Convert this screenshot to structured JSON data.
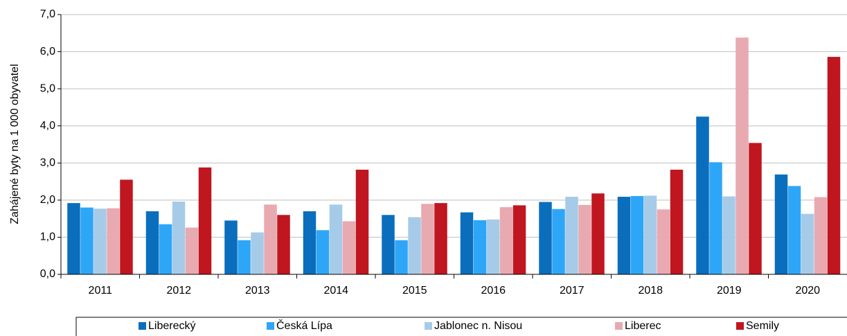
{
  "chart_data": {
    "type": "bar",
    "y_label": "Zahájené byty na 1 000 obyvatel",
    "categories": [
      "2011",
      "2012",
      "2013",
      "2014",
      "2015",
      "2016",
      "2017",
      "2018",
      "2019",
      "2020"
    ],
    "series": [
      {
        "name": "Liberecký",
        "color": "#0a6ebd",
        "values": [
          1.92,
          1.7,
          1.45,
          1.7,
          1.6,
          1.67,
          1.95,
          2.09,
          4.25,
          2.69
        ]
      },
      {
        "name": "Česká Lípa",
        "color": "#2ea6f7",
        "values": [
          1.8,
          1.35,
          0.92,
          1.19,
          0.92,
          1.46,
          1.76,
          2.11,
          3.02,
          2.38
        ]
      },
      {
        "name": "Jablonec n. Nisou",
        "color": "#a6cbe8",
        "values": [
          1.77,
          1.96,
          1.13,
          1.88,
          1.54,
          1.48,
          2.09,
          2.12,
          2.1,
          1.63
        ]
      },
      {
        "name": "Liberec",
        "color": "#e8a9b0",
        "values": [
          1.78,
          1.26,
          1.88,
          1.43,
          1.9,
          1.81,
          1.87,
          1.75,
          6.38,
          2.08
        ]
      },
      {
        "name": "Semily",
        "color": "#c0161f",
        "values": [
          2.55,
          2.88,
          1.6,
          2.82,
          1.92,
          1.86,
          2.18,
          2.82,
          3.54,
          5.86
        ]
      }
    ],
    "ylim": [
      0,
      7
    ],
    "yticks": [
      {
        "value": 0,
        "label": "0,0"
      },
      {
        "value": 1,
        "label": "1,0"
      },
      {
        "value": 2,
        "label": "2,0"
      },
      {
        "value": 3,
        "label": "3,0"
      },
      {
        "value": 4,
        "label": "4,0"
      },
      {
        "value": 5,
        "label": "5,0"
      },
      {
        "value": 6,
        "label": "6,0"
      },
      {
        "value": 7,
        "label": "7,0"
      }
    ],
    "grid": true,
    "legend": "bottom"
  }
}
